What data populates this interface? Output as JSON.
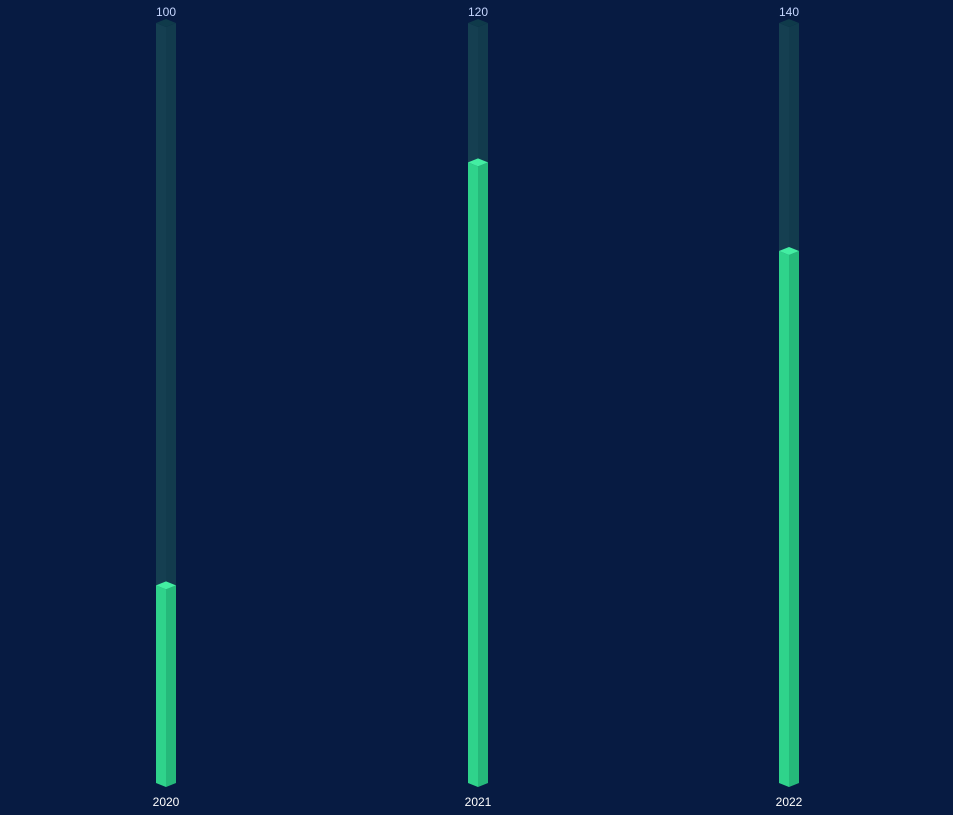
{
  "chart_data": {
    "type": "bar",
    "style": "3d-capsule-bars",
    "categories": [
      "2020",
      "2021",
      "2022"
    ],
    "values": [
      26,
      98,
      98
    ],
    "max_values": [
      100,
      120,
      140
    ],
    "ylim": [
      0,
      "max per bar"
    ],
    "grid": false,
    "legend": "none",
    "title": "",
    "xlabel": "",
    "ylabel": "",
    "colors": {
      "background": "#071b42",
      "track_left": "#153f51",
      "track_right": "#123b4d",
      "track_top": "#0f3a4a",
      "fill_left": "#2fd38b",
      "fill_right": "#25b97a",
      "fill_top": "#43eea2",
      "top_label": "#c7d7ff",
      "category_label": "#ffffff"
    }
  }
}
